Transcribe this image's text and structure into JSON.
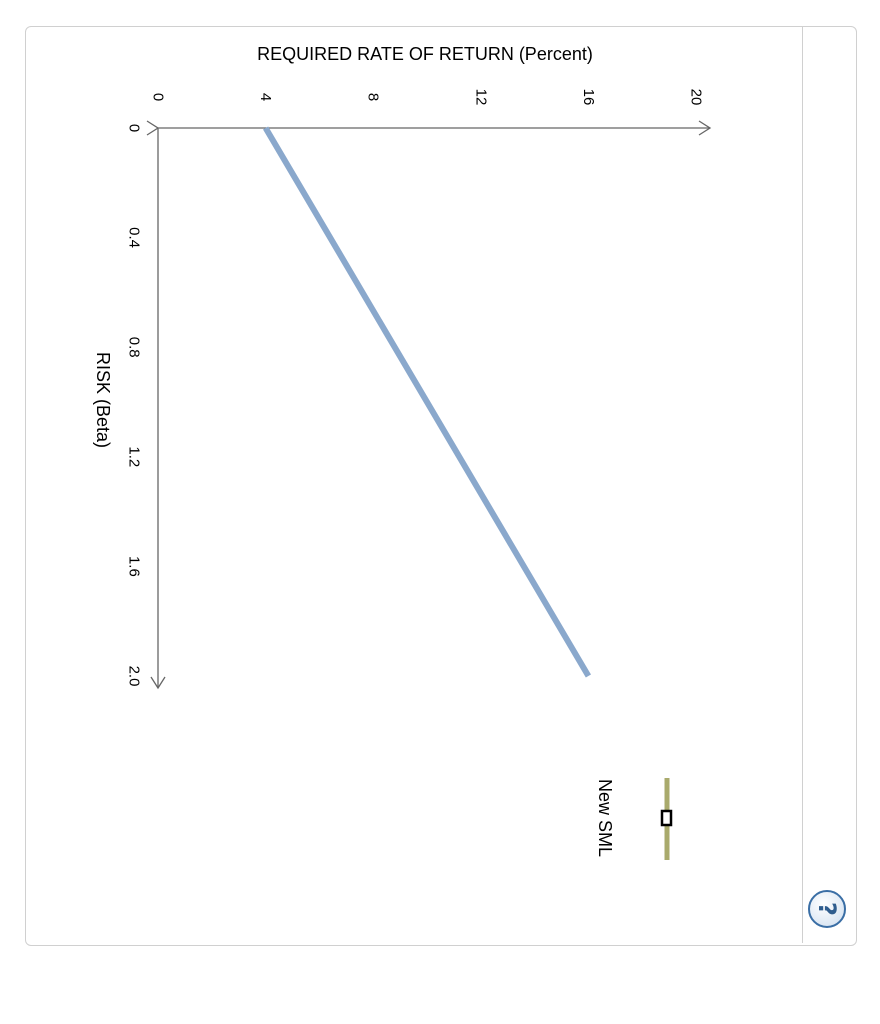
{
  "chart_data": {
    "type": "line",
    "orientation": "rotated-90",
    "ylabel": "REQUIRED RATE OF RETURN (Percent)",
    "xlabel": "RISK (Beta)",
    "yticks": [
      "0",
      "4",
      "8",
      "12",
      "16",
      "20"
    ],
    "xticks": [
      "0",
      "0.4",
      "0.8",
      "1.2",
      "1.6",
      "2.0"
    ],
    "ylim": [
      0,
      20
    ],
    "xlim": [
      0,
      2.0
    ],
    "series": [
      {
        "x": [
          0,
          2.0
        ],
        "y": [
          4,
          16
        ],
        "color": "#8aa8cc"
      }
    ],
    "legend": {
      "label": "New SML",
      "color": "#a9aa6c"
    },
    "grid": false
  },
  "help": {
    "label": "?",
    "icon": "help-icon"
  }
}
